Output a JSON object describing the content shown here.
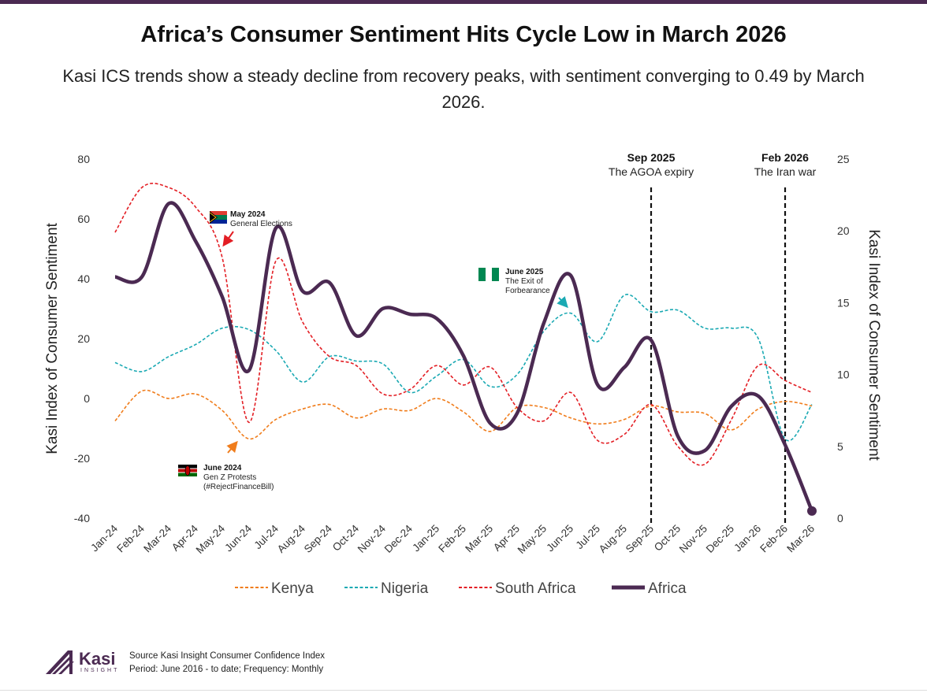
{
  "page": {
    "title": "Africa’s Consumer Sentiment Hits Cycle Low in March 2026",
    "subtitle": "Kasi ICS trends show a steady decline from recovery peaks, with sentiment converging to 0.49 by March 2026.",
    "footer": {
      "brand": "Kasi",
      "brand_sub": "INSIGHT",
      "source": "Source Kasi Insight Consumer Confidence Index",
      "period": "Period: June 2016 - to date; Frequency: Monthly"
    },
    "colors": {
      "accent": "#4b2a52",
      "kenya": "#f07d1c",
      "nigeria": "#1aa9b3",
      "south_africa": "#e31e24",
      "africa": "#4b2a52"
    }
  },
  "chart_data": {
    "type": "line",
    "categories": [
      "Jan-24",
      "Feb-24",
      "Mar-24",
      "Apr-24",
      "May-24",
      "Jun-24",
      "Jul-24",
      "Aug-24",
      "Sep-24",
      "Oct-24",
      "Nov-24",
      "Dec-24",
      "Jan-25",
      "Feb-25",
      "Mar-25",
      "Apr-25",
      "May-25",
      "Jun-25",
      "Jul-25",
      "Aug-25",
      "Sep-25",
      "Oct-25",
      "Nov-25",
      "Dec-25",
      "Jan-26",
      "Feb-26",
      "Mar-26"
    ],
    "ylabel": "Kasi Index of Consumer Sentiment",
    "y2label": "Kasi Index of Consumer Sentiment",
    "ylim": [
      -40,
      80
    ],
    "yticks": [
      -40,
      -20,
      0,
      20,
      40,
      60,
      80
    ],
    "y2lim": [
      0,
      25
    ],
    "y2ticks": [
      0,
      5,
      10,
      15,
      20,
      25
    ],
    "legend": "bottom",
    "series": [
      {
        "name": "Kenya",
        "axis": "left",
        "style": "dashed",
        "color": "#f07d1c",
        "values": [
          -7.5,
          2.5,
          0,
          1.5,
          -4,
          -13.5,
          -7,
          -3.5,
          -2,
          -6.5,
          -3.5,
          -4,
          0,
          -4.5,
          -11,
          -3,
          -3,
          -6.5,
          -8.5,
          -7,
          -2.5,
          -4.5,
          -5,
          -10.5,
          -3.5,
          -1,
          -2.5
        ]
      },
      {
        "name": "Nigeria",
        "axis": "left",
        "style": "dashed",
        "color": "#1aa9b3",
        "values": [
          12,
          9,
          14,
          18,
          23.5,
          23,
          16,
          5.5,
          14,
          12.5,
          11.5,
          2,
          7.5,
          13,
          4,
          8,
          22.5,
          28.5,
          19,
          34.5,
          29,
          29.5,
          23.5,
          23.5,
          20,
          -13.5,
          -2
        ]
      },
      {
        "name": "South Africa",
        "axis": "left",
        "style": "dashed",
        "color": "#e31e24",
        "values": [
          55.5,
          70.5,
          70.5,
          64,
          47,
          -8,
          46,
          25.5,
          14,
          11,
          1.5,
          3,
          11,
          4.5,
          10.5,
          -3,
          -7.5,
          2,
          -14,
          -12,
          -2,
          -16,
          -22,
          -7,
          11,
          6,
          2
        ]
      },
      {
        "name": "Africa",
        "axis": "right",
        "style": "solid",
        "color": "#4b2a52",
        "values": [
          16.8,
          16.8,
          21.9,
          19.3,
          15.4,
          10.3,
          20.2,
          15.8,
          16.4,
          12.7,
          14.6,
          14.2,
          13.9,
          11.3,
          6.6,
          7.3,
          13.6,
          16.9,
          9.3,
          10.5,
          12.4,
          5.7,
          4.7,
          7.8,
          8.5,
          5.1,
          0.5
        ]
      }
    ],
    "events": [
      {
        "date": "Sep 2025",
        "label": "The AGOA expiry"
      },
      {
        "date": "Feb 2026",
        "label": "The Iran war"
      }
    ],
    "annotations": [
      {
        "title": "May 2024",
        "text": [
          "General Elections"
        ],
        "flag": "south-africa"
      },
      {
        "title": "June 2024",
        "text": [
          "Gen Z Protests",
          "(#RejectFinanceBill)"
        ],
        "flag": "kenya"
      },
      {
        "title": "June 2025",
        "text": [
          "The Exit of",
          "Forbearance"
        ],
        "flag": "nigeria"
      }
    ]
  }
}
